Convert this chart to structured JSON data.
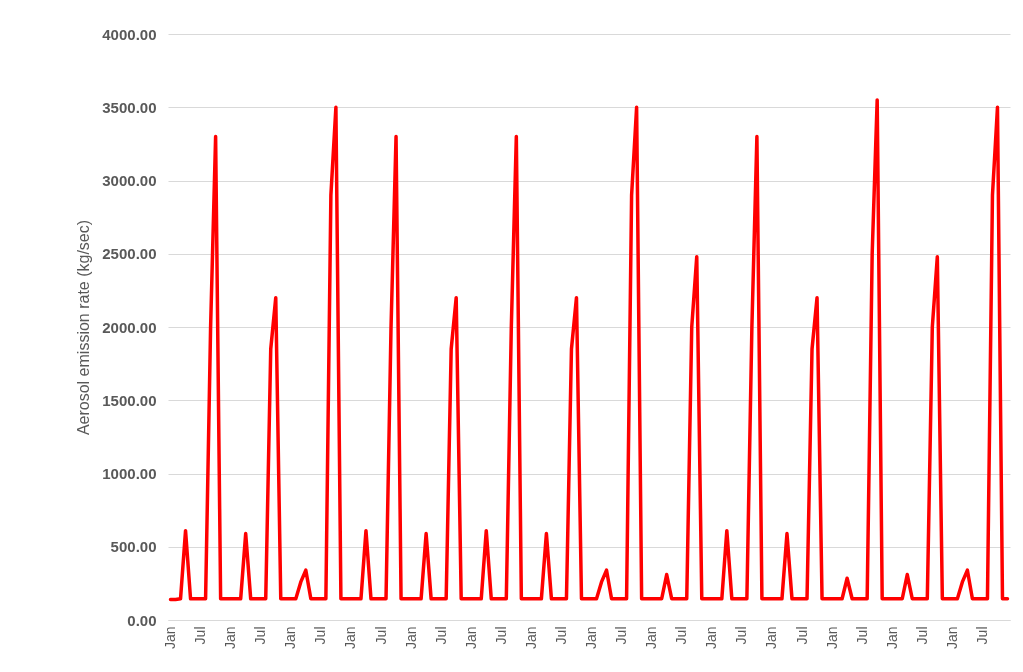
{
  "chart_data": {
    "type": "line",
    "ylabel": "Aerosol emission rate (kg/sec)",
    "categories": [
      "Jan",
      null,
      null,
      null,
      null,
      null,
      "Jul",
      null,
      null,
      null,
      null,
      null,
      "Jan",
      null,
      null,
      null,
      null,
      null,
      "Jul",
      null,
      null,
      null,
      null,
      null,
      "Jan",
      null,
      null,
      null,
      null,
      null,
      "Jul",
      null,
      null,
      null,
      null,
      null,
      "Jan",
      null,
      null,
      null,
      null,
      null,
      "Jul",
      null,
      null,
      null,
      null,
      null,
      "Jan",
      null,
      null,
      null,
      null,
      null,
      "Jul",
      null,
      null,
      null,
      null,
      null,
      "Jan",
      null,
      null,
      null,
      null,
      null,
      "Jul",
      null,
      null,
      null,
      null,
      null,
      "Jan",
      null,
      null,
      null,
      null,
      null,
      "Jul",
      null,
      null,
      null,
      null,
      null,
      "Jan",
      null,
      null,
      null,
      null,
      null,
      "Jul",
      null,
      null,
      null,
      null,
      null,
      "Jan",
      null,
      null,
      null,
      null,
      null,
      "Jul",
      null,
      null,
      null,
      null,
      null,
      "Jan",
      null,
      null,
      null,
      null,
      null,
      "Jul",
      null,
      null,
      null,
      null,
      null,
      "Jan",
      null,
      null,
      null,
      null,
      null,
      "Jul",
      null,
      null,
      null,
      null,
      null,
      "Jan",
      null,
      null,
      null,
      null,
      null,
      "Jul",
      null,
      null,
      null,
      null,
      null,
      "Jan",
      null,
      null,
      null,
      null,
      null,
      "Jul",
      null,
      null,
      null,
      null,
      null,
      "Jan",
      null,
      null,
      null,
      null,
      null,
      "Jul",
      null,
      null,
      null,
      null,
      null
    ],
    "series": [
      {
        "color": "#ff0000",
        "values": [
          140,
          140,
          145,
          610,
          145,
          145,
          145,
          145,
          2000,
          3300,
          145,
          145,
          145,
          145,
          145,
          590,
          145,
          145,
          145,
          145,
          1850,
          2200,
          145,
          145,
          145,
          145,
          260,
          340,
          145,
          145,
          145,
          145,
          2900,
          3500,
          145,
          145,
          145,
          145,
          145,
          610,
          145,
          145,
          145,
          145,
          2000,
          3300,
          145,
          145,
          145,
          145,
          145,
          590,
          145,
          145,
          145,
          145,
          1850,
          2200,
          145,
          145,
          145,
          145,
          145,
          610,
          145,
          145,
          145,
          145,
          2000,
          3300,
          145,
          145,
          145,
          145,
          145,
          590,
          145,
          145,
          145,
          145,
          1850,
          2200,
          145,
          145,
          145,
          145,
          260,
          340,
          145,
          145,
          145,
          145,
          2900,
          3500,
          145,
          145,
          145,
          145,
          145,
          310,
          145,
          145,
          145,
          145,
          2000,
          2480,
          145,
          145,
          145,
          145,
          145,
          610,
          145,
          145,
          145,
          145,
          2000,
          3300,
          145,
          145,
          145,
          145,
          145,
          590,
          145,
          145,
          145,
          145,
          1850,
          2200,
          145,
          145,
          145,
          145,
          145,
          285,
          145,
          145,
          145,
          145,
          2500,
          3550,
          145,
          145,
          145,
          145,
          145,
          310,
          145,
          145,
          145,
          145,
          2000,
          2480,
          145,
          145,
          145,
          145,
          260,
          340,
          145,
          145,
          145,
          145,
          2900,
          3500,
          145,
          145
        ]
      }
    ],
    "ylim": [
      0,
      4000
    ],
    "yticks": [
      {
        "value": 0,
        "label": "0.00"
      },
      {
        "value": 500,
        "label": "500.00"
      },
      {
        "value": 1000,
        "label": "1000.00"
      },
      {
        "value": 1500,
        "label": "1500.00"
      },
      {
        "value": 2000,
        "label": "2000.00"
      },
      {
        "value": 2500,
        "label": "2500.00"
      },
      {
        "value": 3000,
        "label": "3000.00"
      },
      {
        "value": 3500,
        "label": "3500.00"
      },
      {
        "value": 4000,
        "label": "4000.00"
      }
    ],
    "grid": "y",
    "line_style": "solid",
    "marker": "none"
  }
}
